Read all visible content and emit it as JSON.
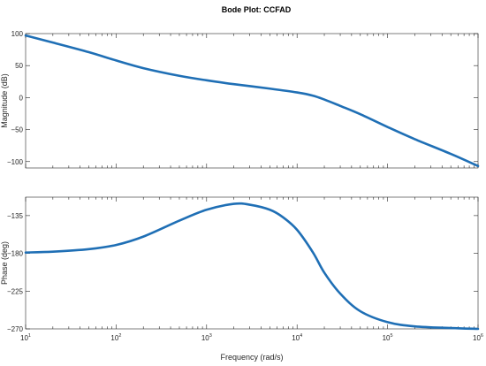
{
  "chart_data": {
    "type": "line",
    "title": "Bode Plot: CCFAD",
    "xlabel": "Frequency (rad/s)",
    "x_scale": "log",
    "xlim": [
      10,
      1000000
    ],
    "x_tick_labels": [
      {
        "base": "10",
        "exp": "1"
      },
      {
        "base": "10",
        "exp": "2"
      },
      {
        "base": "10",
        "exp": "3"
      },
      {
        "base": "10",
        "exp": "4"
      },
      {
        "base": "10",
        "exp": "5"
      },
      {
        "base": "10",
        "exp": "6"
      }
    ],
    "line_color": "#1f6fb5",
    "grid": false,
    "panels": [
      {
        "name": "magnitude",
        "ylabel": "Magnitude (dB)",
        "ylim": [
          -110,
          100
        ],
        "y_ticks": [
          "100",
          "50",
          "0",
          "−50",
          "−100"
        ],
        "series": [
          {
            "x": [
              10,
              20,
              50,
              100,
              200,
              500,
              1000,
              2000,
              5000,
              10000,
              15000,
              20000,
              30000,
              50000,
              100000,
              200000,
              500000,
              1000000
            ],
            "values": [
              97,
              86,
              71,
              58,
              46,
              34,
              27,
              21,
              14,
              8,
              3,
              -3,
              -13,
              -26,
              -46,
              -65,
              -88,
              -107
            ]
          }
        ]
      },
      {
        "name": "phase",
        "ylabel": "Phase (deg)",
        "ylim": [
          -270,
          -113
        ],
        "y_ticks": [
          "−135",
          "−180",
          "−225",
          "−270"
        ],
        "series": [
          {
            "x": [
              10,
              20,
              50,
              100,
              200,
              500,
              1000,
              2000,
              3000,
              5000,
              7000,
              10000,
              15000,
              20000,
              30000,
              50000,
              100000,
              200000,
              500000,
              1000000
            ],
            "values": [
              -179,
              -178,
              -175,
              -170,
              -160,
              -141,
              -128,
              -121,
              -122,
              -128,
              -137,
              -152,
              -179,
              -203,
              -228,
              -249,
              -262,
              -267,
              -269,
              -270
            ]
          }
        ]
      }
    ]
  }
}
